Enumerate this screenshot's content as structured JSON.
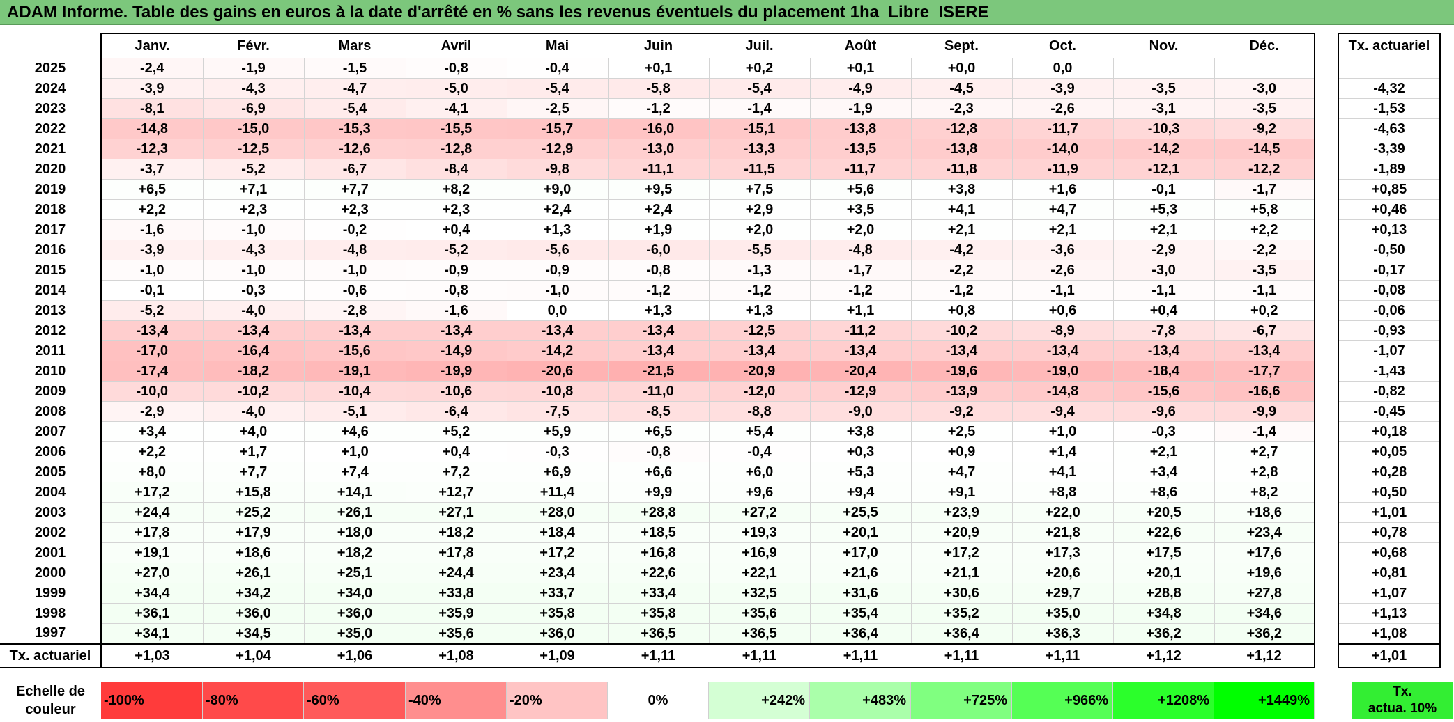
{
  "title": "ADAM Informe. Table des gains en euros à la date d'arrêté en % sans les revenus éventuels du placement 1ha_Libre_ISERE",
  "months": [
    "Janv.",
    "Févr.",
    "Mars",
    "Avril",
    "Mai",
    "Juin",
    "Juil.",
    "Août",
    "Sept.",
    "Oct.",
    "Nov.",
    "Déc."
  ],
  "tx_header": "Tx. actuariel",
  "rows": [
    {
      "year": "2025",
      "values": [
        "-2,4",
        "-1,9",
        "-1,5",
        "-0,8",
        "-0,4",
        "+0,1",
        "+0,2",
        "+0,1",
        "+0,0",
        "0,0",
        "",
        ""
      ],
      "tx": ""
    },
    {
      "year": "2024",
      "values": [
        "-3,9",
        "-4,3",
        "-4,7",
        "-5,0",
        "-5,4",
        "-5,8",
        "-5,4",
        "-4,9",
        "-4,5",
        "-3,9",
        "-3,5",
        "-3,0"
      ],
      "tx": "-4,32"
    },
    {
      "year": "2023",
      "values": [
        "-8,1",
        "-6,9",
        "-5,4",
        "-4,1",
        "-2,5",
        "-1,2",
        "-1,4",
        "-1,9",
        "-2,3",
        "-2,6",
        "-3,1",
        "-3,5"
      ],
      "tx": "-1,53"
    },
    {
      "year": "2022",
      "values": [
        "-14,8",
        "-15,0",
        "-15,3",
        "-15,5",
        "-15,7",
        "-16,0",
        "-15,1",
        "-13,8",
        "-12,8",
        "-11,7",
        "-10,3",
        "-9,2"
      ],
      "tx": "-4,63"
    },
    {
      "year": "2021",
      "values": [
        "-12,3",
        "-12,5",
        "-12,6",
        "-12,8",
        "-12,9",
        "-13,0",
        "-13,3",
        "-13,5",
        "-13,8",
        "-14,0",
        "-14,2",
        "-14,5"
      ],
      "tx": "-3,39"
    },
    {
      "year": "2020",
      "values": [
        "-3,7",
        "-5,2",
        "-6,7",
        "-8,4",
        "-9,8",
        "-11,1",
        "-11,5",
        "-11,7",
        "-11,8",
        "-11,9",
        "-12,1",
        "-12,2"
      ],
      "tx": "-1,89"
    },
    {
      "year": "2019",
      "values": [
        "+6,5",
        "+7,1",
        "+7,7",
        "+8,2",
        "+9,0",
        "+9,5",
        "+7,5",
        "+5,6",
        "+3,8",
        "+1,6",
        "-0,1",
        "-1,7"
      ],
      "tx": "+0,85"
    },
    {
      "year": "2018",
      "values": [
        "+2,2",
        "+2,3",
        "+2,3",
        "+2,3",
        "+2,4",
        "+2,4",
        "+2,9",
        "+3,5",
        "+4,1",
        "+4,7",
        "+5,3",
        "+5,8"
      ],
      "tx": "+0,46"
    },
    {
      "year": "2017",
      "values": [
        "-1,6",
        "-1,0",
        "-0,2",
        "+0,4",
        "+1,3",
        "+1,9",
        "+2,0",
        "+2,0",
        "+2,1",
        "+2,1",
        "+2,1",
        "+2,2"
      ],
      "tx": "+0,13"
    },
    {
      "year": "2016",
      "values": [
        "-3,9",
        "-4,3",
        "-4,8",
        "-5,2",
        "-5,6",
        "-6,0",
        "-5,5",
        "-4,8",
        "-4,2",
        "-3,6",
        "-2,9",
        "-2,2"
      ],
      "tx": "-0,50"
    },
    {
      "year": "2015",
      "values": [
        "-1,0",
        "-1,0",
        "-1,0",
        "-0,9",
        "-0,9",
        "-0,8",
        "-1,3",
        "-1,7",
        "-2,2",
        "-2,6",
        "-3,0",
        "-3,5"
      ],
      "tx": "-0,17"
    },
    {
      "year": "2014",
      "values": [
        "-0,1",
        "-0,3",
        "-0,6",
        "-0,8",
        "-1,0",
        "-1,2",
        "-1,2",
        "-1,2",
        "-1,2",
        "-1,1",
        "-1,1",
        "-1,1"
      ],
      "tx": "-0,08"
    },
    {
      "year": "2013",
      "values": [
        "-5,2",
        "-4,0",
        "-2,8",
        "-1,6",
        "0,0",
        "+1,3",
        "+1,3",
        "+1,1",
        "+0,8",
        "+0,6",
        "+0,4",
        "+0,2"
      ],
      "tx": "-0,06"
    },
    {
      "year": "2012",
      "values": [
        "-13,4",
        "-13,4",
        "-13,4",
        "-13,4",
        "-13,4",
        "-13,4",
        "-12,5",
        "-11,2",
        "-10,2",
        "-8,9",
        "-7,8",
        "-6,7"
      ],
      "tx": "-0,93"
    },
    {
      "year": "2011",
      "values": [
        "-17,0",
        "-16,4",
        "-15,6",
        "-14,9",
        "-14,2",
        "-13,4",
        "-13,4",
        "-13,4",
        "-13,4",
        "-13,4",
        "-13,4",
        "-13,4"
      ],
      "tx": "-1,07"
    },
    {
      "year": "2010",
      "values": [
        "-17,4",
        "-18,2",
        "-19,1",
        "-19,9",
        "-20,6",
        "-21,5",
        "-20,9",
        "-20,4",
        "-19,6",
        "-19,0",
        "-18,4",
        "-17,7"
      ],
      "tx": "-1,43"
    },
    {
      "year": "2009",
      "values": [
        "-10,0",
        "-10,2",
        "-10,4",
        "-10,6",
        "-10,8",
        "-11,0",
        "-12,0",
        "-12,9",
        "-13,9",
        "-14,8",
        "-15,6",
        "-16,6"
      ],
      "tx": "-0,82"
    },
    {
      "year": "2008",
      "values": [
        "-2,9",
        "-4,0",
        "-5,1",
        "-6,4",
        "-7,5",
        "-8,5",
        "-8,8",
        "-9,0",
        "-9,2",
        "-9,4",
        "-9,6",
        "-9,9"
      ],
      "tx": "-0,45"
    },
    {
      "year": "2007",
      "values": [
        "+3,4",
        "+4,0",
        "+4,6",
        "+5,2",
        "+5,9",
        "+6,5",
        "+5,4",
        "+3,8",
        "+2,5",
        "+1,0",
        "-0,3",
        "-1,4"
      ],
      "tx": "+0,18"
    },
    {
      "year": "2006",
      "values": [
        "+2,2",
        "+1,7",
        "+1,0",
        "+0,4",
        "-0,3",
        "-0,8",
        "-0,4",
        "+0,3",
        "+0,9",
        "+1,4",
        "+2,1",
        "+2,7"
      ],
      "tx": "+0,05"
    },
    {
      "year": "2005",
      "values": [
        "+8,0",
        "+7,7",
        "+7,4",
        "+7,2",
        "+6,9",
        "+6,6",
        "+6,0",
        "+5,3",
        "+4,7",
        "+4,1",
        "+3,4",
        "+2,8"
      ],
      "tx": "+0,28"
    },
    {
      "year": "2004",
      "values": [
        "+17,2",
        "+15,8",
        "+14,1",
        "+12,7",
        "+11,4",
        "+9,9",
        "+9,6",
        "+9,4",
        "+9,1",
        "+8,8",
        "+8,6",
        "+8,2"
      ],
      "tx": "+0,50"
    },
    {
      "year": "2003",
      "values": [
        "+24,4",
        "+25,2",
        "+26,1",
        "+27,1",
        "+28,0",
        "+28,8",
        "+27,2",
        "+25,5",
        "+23,9",
        "+22,0",
        "+20,5",
        "+18,6"
      ],
      "tx": "+1,01"
    },
    {
      "year": "2002",
      "values": [
        "+17,8",
        "+17,9",
        "+18,0",
        "+18,2",
        "+18,4",
        "+18,5",
        "+19,3",
        "+20,1",
        "+20,9",
        "+21,8",
        "+22,6",
        "+23,4"
      ],
      "tx": "+0,78"
    },
    {
      "year": "2001",
      "values": [
        "+19,1",
        "+18,6",
        "+18,2",
        "+17,8",
        "+17,2",
        "+16,8",
        "+16,9",
        "+17,0",
        "+17,2",
        "+17,3",
        "+17,5",
        "+17,6"
      ],
      "tx": "+0,68"
    },
    {
      "year": "2000",
      "values": [
        "+27,0",
        "+26,1",
        "+25,1",
        "+24,4",
        "+23,4",
        "+22,6",
        "+22,1",
        "+21,6",
        "+21,1",
        "+20,6",
        "+20,1",
        "+19,6"
      ],
      "tx": "+0,81"
    },
    {
      "year": "1999",
      "values": [
        "+34,4",
        "+34,2",
        "+34,0",
        "+33,8",
        "+33,7",
        "+33,4",
        "+32,5",
        "+31,6",
        "+30,6",
        "+29,7",
        "+28,8",
        "+27,8"
      ],
      "tx": "+1,07"
    },
    {
      "year": "1998",
      "values": [
        "+36,1",
        "+36,0",
        "+36,0",
        "+35,9",
        "+35,8",
        "+35,8",
        "+35,6",
        "+35,4",
        "+35,2",
        "+35,0",
        "+34,8",
        "+34,6"
      ],
      "tx": "+1,13"
    },
    {
      "year": "1997",
      "values": [
        "+34,1",
        "+34,5",
        "+35,0",
        "+35,6",
        "+36,0",
        "+36,5",
        "+36,5",
        "+36,4",
        "+36,4",
        "+36,3",
        "+36,2",
        "+36,2"
      ],
      "tx": "+1,08"
    }
  ],
  "footer": {
    "label": "Tx. actuariel",
    "values": [
      "+1,03",
      "+1,04",
      "+1,06",
      "+1,08",
      "+1,09",
      "+1,11",
      "+1,11",
      "+1,11",
      "+1,11",
      "+1,11",
      "+1,12",
      "+1,12"
    ],
    "tx": "+1,01"
  },
  "scale": {
    "label_line1": "Echelle de",
    "label_line2": "couleur",
    "cells": [
      {
        "text": "-100%",
        "color": "#ff3b3b",
        "kind": "neg"
      },
      {
        "text": "-80%",
        "color": "#ff4a4a",
        "kind": "neg"
      },
      {
        "text": "-60%",
        "color": "#ff5a5a",
        "kind": "neg"
      },
      {
        "text": "-40%",
        "color": "#ff8e8e",
        "kind": "neg"
      },
      {
        "text": "-20%",
        "color": "#ffc4c4",
        "kind": "neg"
      },
      {
        "text": "0%",
        "color": "#ffffff",
        "kind": "mid"
      },
      {
        "text": "+242%",
        "color": "#d4ffd4",
        "kind": "pos"
      },
      {
        "text": "+483%",
        "color": "#aaffaa",
        "kind": "pos"
      },
      {
        "text": "+725%",
        "color": "#80ff80",
        "kind": "pos"
      },
      {
        "text": "+966%",
        "color": "#55ff55",
        "kind": "pos"
      },
      {
        "text": "+1208%",
        "color": "#2bff2b",
        "kind": "pos"
      },
      {
        "text": "+1449%",
        "color": "#00ff00",
        "kind": "pos"
      }
    ],
    "tx_line1": "Tx.",
    "tx_line2": "actua. 10%",
    "tx_color": "#33ee33"
  },
  "colors": {
    "title_bg": "#7cc77c",
    "negative_max": "#ff9a9a",
    "positive_max": "#00ff00"
  }
}
